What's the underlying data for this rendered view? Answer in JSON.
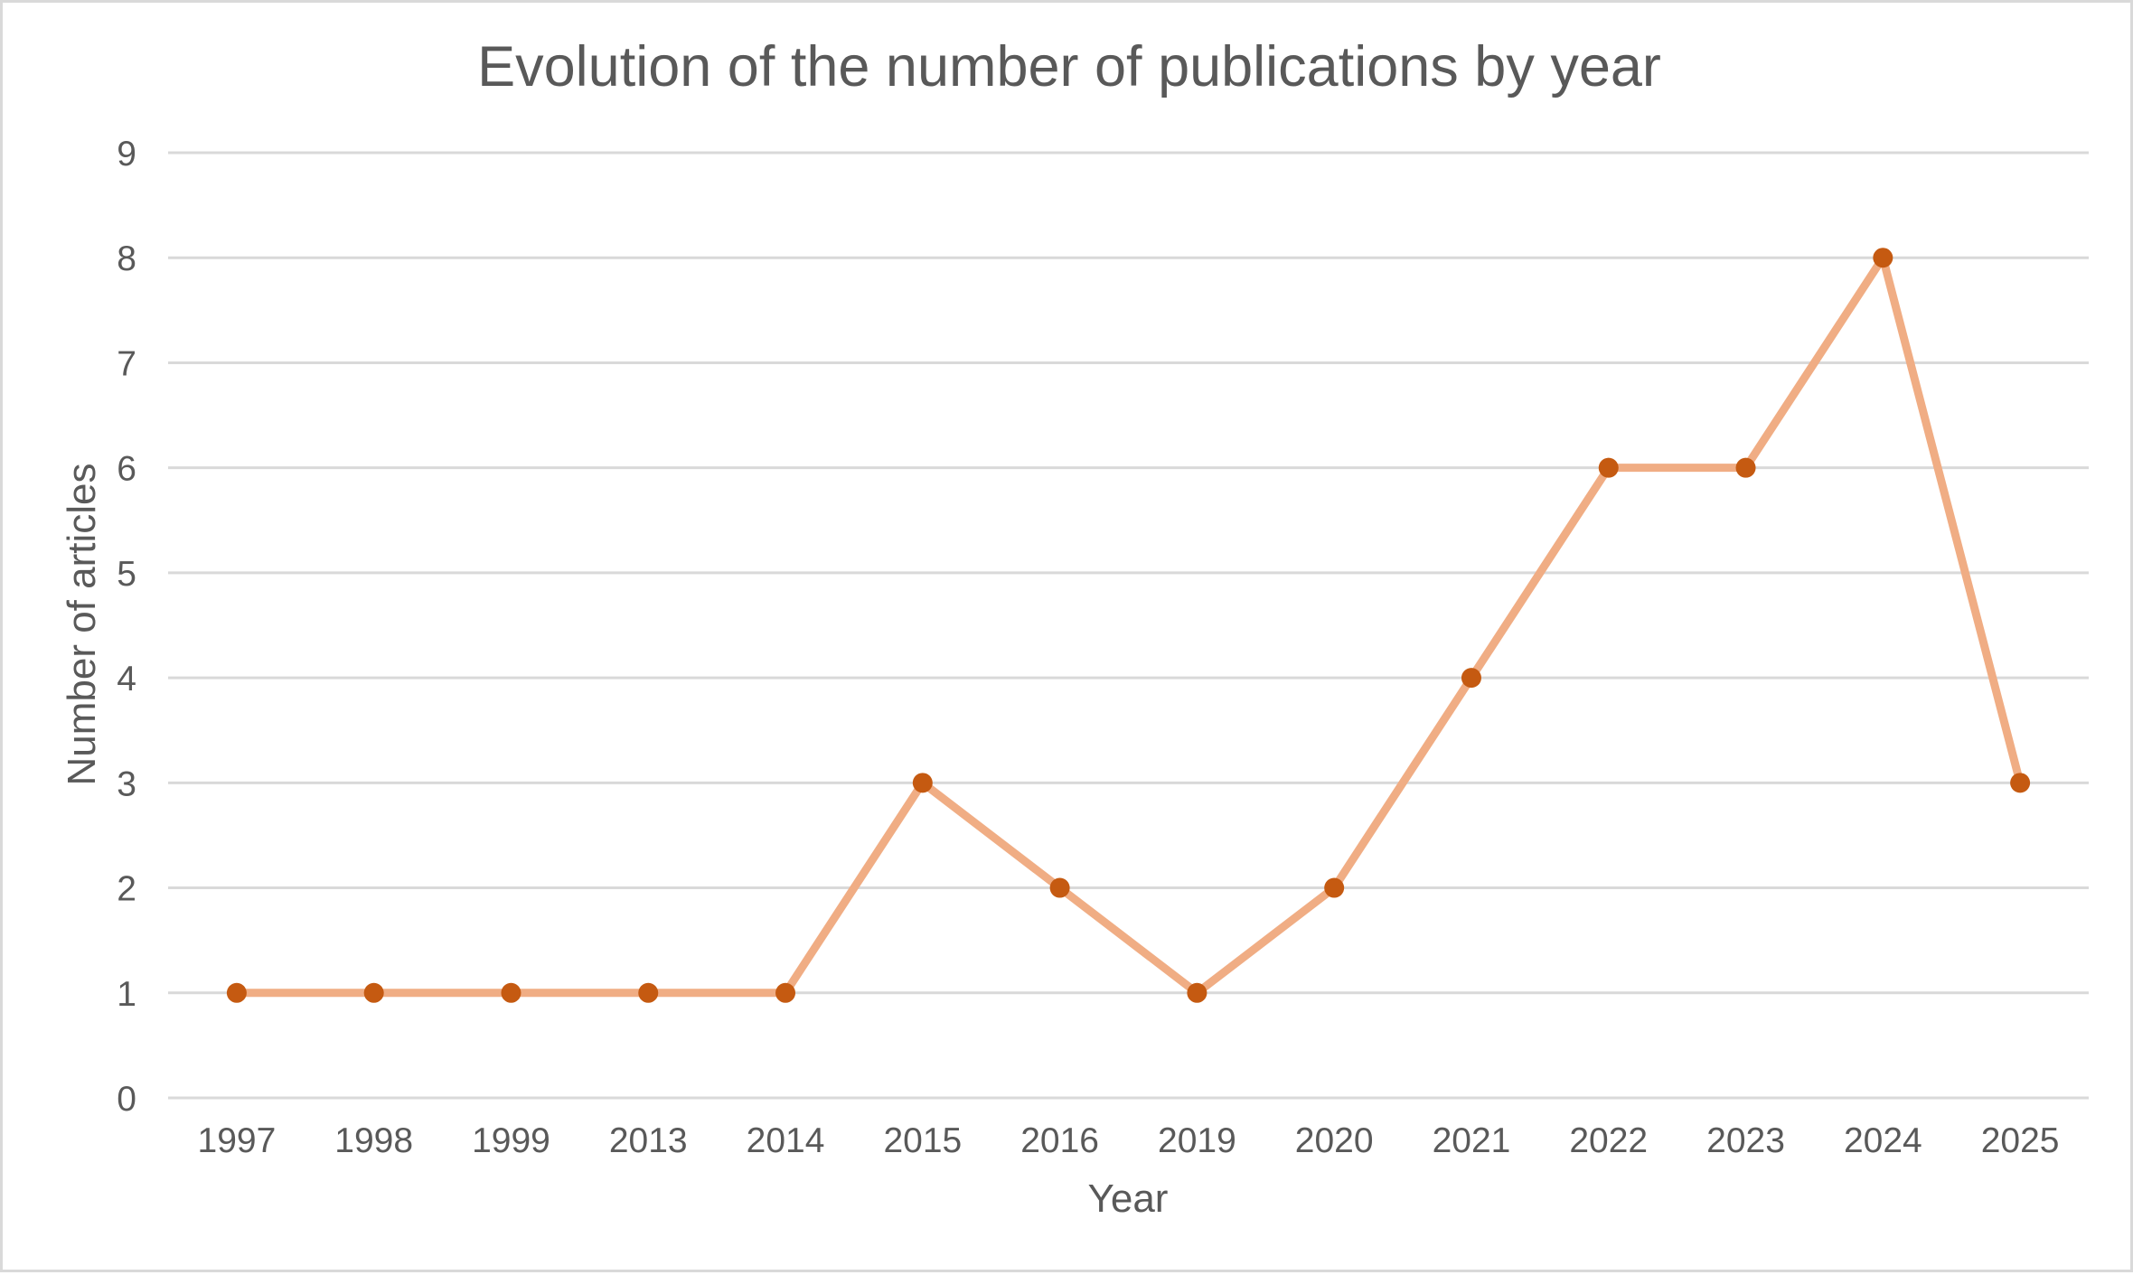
{
  "chart_data": {
    "type": "line",
    "title": "Evolution of the number of publications by year",
    "xlabel": "Year",
    "ylabel": "Number of articles",
    "categories": [
      "1997",
      "1998",
      "1999",
      "2013",
      "2014",
      "2015",
      "2016",
      "2019",
      "2020",
      "2021",
      "2022",
      "2023",
      "2024",
      "2025"
    ],
    "series": [
      {
        "values": [
          1,
          1,
          1,
          1,
          1,
          3,
          2,
          1,
          2,
          4,
          6,
          6,
          8,
          3
        ],
        "line_color": "#f0ad84",
        "marker_color": "#c55a11"
      }
    ],
    "ylim": [
      0,
      9
    ],
    "yticks": [
      0,
      1,
      2,
      3,
      4,
      5,
      6,
      7,
      8,
      9
    ],
    "grid": true,
    "legend": "none"
  }
}
